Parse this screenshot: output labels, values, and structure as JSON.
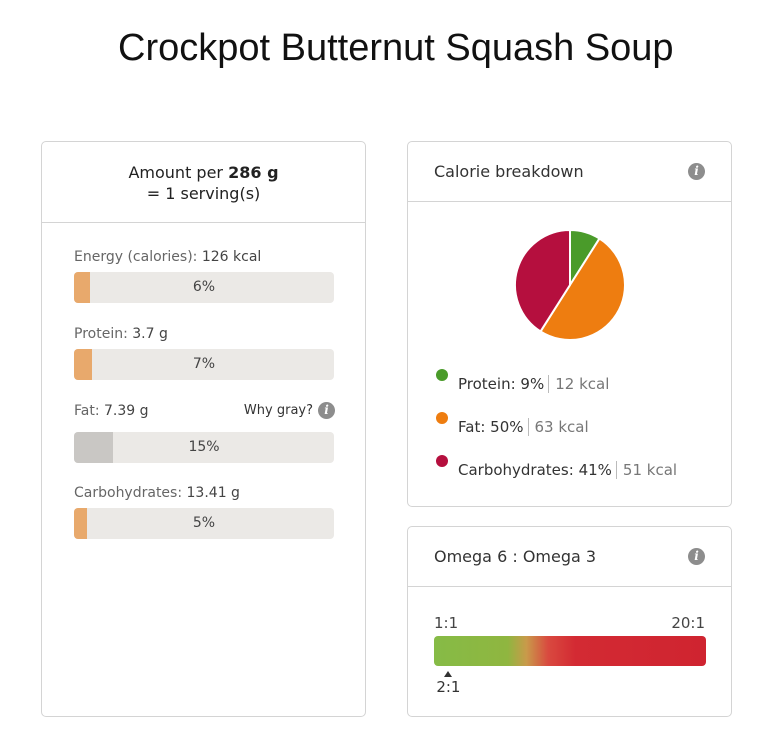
{
  "title": "Crockpot Butternut Squash Soup",
  "amount": {
    "prefix": "Amount per",
    "weight": "286 g",
    "serving": "= 1 serving(s)"
  },
  "nutrients": [
    {
      "name": "Energy (calories):",
      "value": "126 kcal",
      "percent_label": "6%",
      "percent": 6,
      "gray": false
    },
    {
      "name": "Protein:",
      "value": "3.7 g",
      "percent_label": "7%",
      "percent": 7,
      "gray": false
    },
    {
      "name": "Fat:",
      "value": "7.39 g",
      "percent_label": "15%",
      "percent": 15,
      "gray": true
    },
    {
      "name": "Carbohydrates:",
      "value": "13.41 g",
      "percent_label": "5%",
      "percent": 5,
      "gray": false
    }
  ],
  "why_gray": "Why gray?",
  "calorie_breakdown": {
    "title": "Calorie breakdown",
    "items": [
      {
        "name": "Protein:",
        "pct": "9%",
        "kcal": "12 kcal",
        "share": 9,
        "color": "#4a9b2a"
      },
      {
        "name": "Fat:",
        "pct": "50%",
        "kcal": "63 kcal",
        "share": 50,
        "color": "#ee7d10"
      },
      {
        "name": "Carbohydrates:",
        "pct": "41%",
        "kcal": "51 kcal",
        "share": 41,
        "color": "#b50f3e"
      }
    ]
  },
  "omega": {
    "title": "Omega 6 : Omega 3",
    "min_label": "1:1",
    "max_label": "20:1",
    "value_label": "2:1",
    "value": 2,
    "min": 1,
    "max": 20
  },
  "info_icon": "i"
}
